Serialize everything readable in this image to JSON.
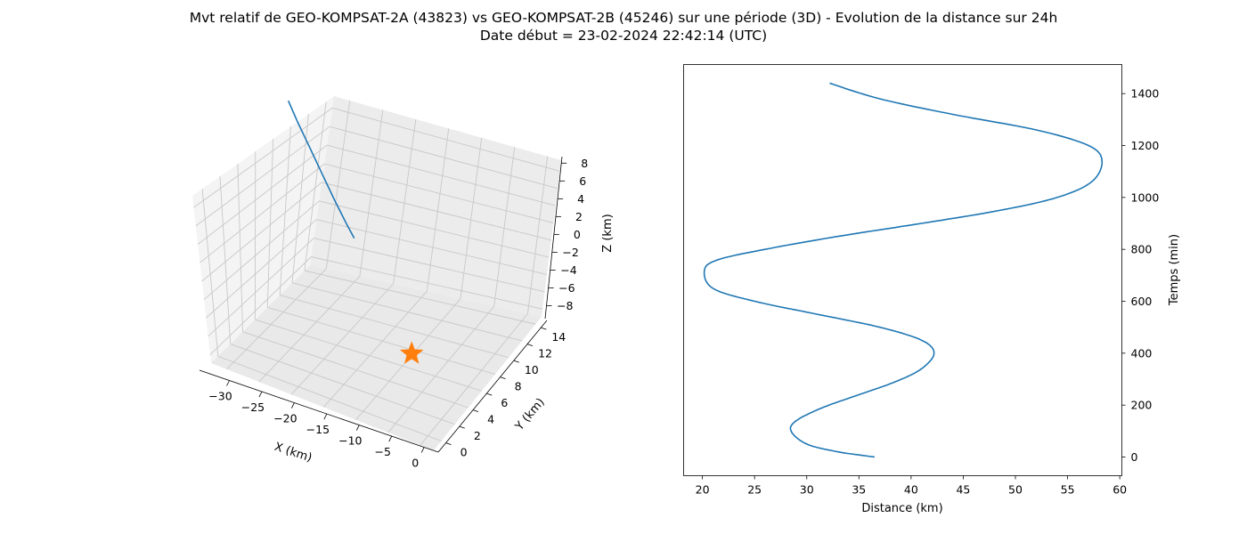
{
  "title": {
    "line1": "Mvt relatif de GEO-KOMPSAT-2A (43823) vs GEO-KOMPSAT-2B (45246) sur une période (3D) - Evolution de la distance sur 24h",
    "line2": "Date début = 23-02-2024 22:42:14 (UTC)"
  },
  "colors": {
    "series": "#1f77b4",
    "marker": "#ff7f0e",
    "grid": "#b0b0b0",
    "pane": "#f2f2f2"
  },
  "chart_data": [
    {
      "type": "line3d",
      "xlabel": "X (km)",
      "ylabel": "Y (km)",
      "zlabel": "Z (km)",
      "xlim": [
        -33,
        3
      ],
      "ylim": [
        -1,
        16
      ],
      "zlim": [
        -9,
        9
      ],
      "x_ticks": [
        "−30",
        "−25",
        "−20",
        "−15",
        "−10",
        "−5",
        "0"
      ],
      "y_ticks": [
        "0",
        "2",
        "4",
        "6",
        "8",
        "10",
        "12",
        "14"
      ],
      "z_ticks": [
        "8",
        "6",
        "4",
        "2",
        "0",
        "−2",
        "−4",
        "−6",
        "−8"
      ],
      "grid": true,
      "series": [
        {
          "x": [
            -33,
            -32,
            -30.5,
            -29,
            -27.5,
            -26,
            -25
          ],
          "y": [
            15.5,
            15.6,
            15.7,
            15.8,
            15.9,
            16.0,
            16.0
          ],
          "z": [
            9.0,
            7.0,
            4.5,
            2.0,
            -0.5,
            -2.8,
            -4.0
          ]
        }
      ],
      "marker": {
        "shape": "star",
        "x": 0,
        "y": 0,
        "z": 0
      }
    },
    {
      "type": "line",
      "xlabel": "Distance (km)",
      "ylabel": "Temps (min)",
      "xlim": [
        18.2,
        60.2
      ],
      "ylim": [
        -72,
        1512
      ],
      "x_ticks": [
        "20",
        "25",
        "30",
        "35",
        "40",
        "45",
        "50",
        "55",
        "60"
      ],
      "y_ticks": [
        "0",
        "200",
        "400",
        "600",
        "800",
        "1000",
        "1200",
        "1400"
      ],
      "series": [
        {
          "distance": [
            36.5,
            33,
            30,
            28.5,
            29,
            31.5,
            35,
            38.5,
            41,
            42.2,
            41,
            37,
            31,
            25,
            21,
            20.2,
            21.5,
            26,
            33,
            41,
            48.5,
            54,
            57.3,
            58.3,
            57,
            52,
            44,
            37,
            32.2
          ],
          "time": [
            0,
            20,
            50,
            100,
            140,
            190,
            240,
            290,
            340,
            400,
            450,
            500,
            550,
            600,
            650,
            720,
            760,
            800,
            850,
            900,
            950,
            1000,
            1060,
            1140,
            1200,
            1260,
            1320,
            1380,
            1440
          ]
        }
      ]
    }
  ]
}
